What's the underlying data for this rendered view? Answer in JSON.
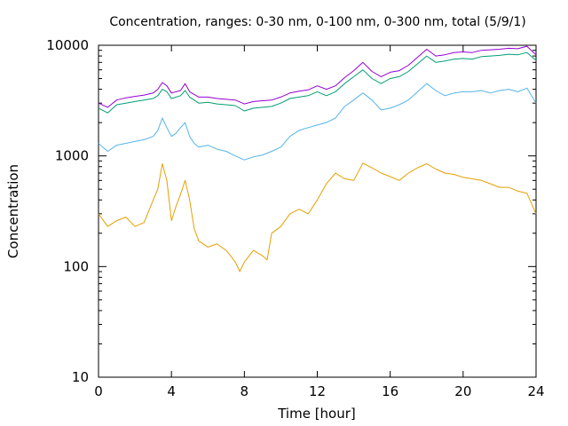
{
  "chart_data": {
    "type": "line",
    "title": "Concentration, ranges: 0-30 nm, 0-100 nm, 0-300 nm, total (5/9/1)",
    "xlabel": "Time [hour]",
    "ylabel": "Concentration",
    "xlim": [
      0,
      24
    ],
    "ylim": [
      10,
      10000
    ],
    "yscale": "log",
    "grid": false,
    "legend": "none",
    "x_ticks": [
      "0",
      "4",
      "8",
      "12",
      "16",
      "20",
      "24"
    ],
    "y_ticks": [
      "10",
      "100",
      "1000",
      "10000"
    ],
    "series": [
      {
        "color": "#e69f00",
        "x": [
          0,
          0.5,
          1,
          1.5,
          2,
          2.5,
          3,
          3.25,
          3.5,
          3.75,
          4,
          4.25,
          4.5,
          4.75,
          5,
          5.25,
          5.5,
          6,
          6.5,
          7,
          7.25,
          7.5,
          7.75,
          8,
          8.5,
          9,
          9.25,
          9.5,
          10,
          10.5,
          11,
          11.5,
          12,
          12.5,
          13,
          13.5,
          14,
          14.5,
          15,
          15.5,
          16,
          16.5,
          17,
          17.5,
          18,
          18.5,
          19,
          19.5,
          20,
          20.5,
          21,
          21.5,
          22,
          22.5,
          23,
          23.5,
          24
        ],
        "values": [
          300,
          230,
          260,
          280,
          230,
          250,
          400,
          500,
          850,
          600,
          260,
          350,
          450,
          600,
          400,
          220,
          170,
          150,
          160,
          140,
          125,
          110,
          90,
          110,
          140,
          125,
          115,
          200,
          230,
          300,
          330,
          300,
          400,
          560,
          700,
          620,
          600,
          860,
          780,
          700,
          650,
          600,
          700,
          780,
          850,
          760,
          700,
          680,
          640,
          620,
          600,
          560,
          520,
          520,
          480,
          460,
          300
        ]
      },
      {
        "color": "#56b4e9",
        "x": [
          0,
          0.5,
          1,
          1.5,
          2,
          2.5,
          3,
          3.25,
          3.5,
          3.75,
          4,
          4.25,
          4.5,
          4.75,
          5,
          5.25,
          5.5,
          6,
          6.5,
          7,
          7.5,
          8,
          8.5,
          9,
          9.5,
          10,
          10.5,
          11,
          11.5,
          12,
          12.5,
          13,
          13.5,
          14,
          14.5,
          15,
          15.5,
          16,
          16.5,
          17,
          17.5,
          18,
          18.5,
          19,
          19.5,
          20,
          20.5,
          21,
          21.5,
          22,
          22.5,
          23,
          23.5,
          24
        ],
        "values": [
          1300,
          1100,
          1250,
          1300,
          1350,
          1400,
          1500,
          1700,
          2200,
          1800,
          1500,
          1600,
          1800,
          2000,
          1500,
          1300,
          1200,
          1250,
          1150,
          1100,
          1000,
          920,
          980,
          1020,
          1100,
          1200,
          1500,
          1700,
          1800,
          1900,
          2000,
          2200,
          2800,
          3200,
          3700,
          3200,
          2600,
          2700,
          2900,
          3200,
          3800,
          4500,
          3900,
          3500,
          3700,
          3800,
          3800,
          3900,
          3700,
          3900,
          4000,
          3800,
          4100,
          3000
        ]
      },
      {
        "color": "#009e73",
        "x": [
          0,
          0.5,
          1,
          1.5,
          2,
          2.5,
          3,
          3.25,
          3.5,
          3.75,
          4,
          4.5,
          4.75,
          5,
          5.5,
          6,
          6.5,
          7,
          7.5,
          8,
          8.5,
          9,
          9.5,
          10,
          10.5,
          11,
          11.5,
          12,
          12.5,
          13,
          13.5,
          14,
          14.5,
          15,
          15.5,
          16,
          16.5,
          17,
          17.5,
          18,
          18.5,
          19,
          19.5,
          20,
          20.5,
          21,
          21.5,
          22,
          22.5,
          23,
          23.5,
          24
        ],
        "values": [
          2700,
          2450,
          2900,
          3000,
          3100,
          3200,
          3300,
          3500,
          4000,
          3800,
          3300,
          3500,
          3900,
          3400,
          3000,
          3050,
          2950,
          2900,
          2850,
          2550,
          2700,
          2750,
          2800,
          3000,
          3300,
          3400,
          3500,
          3800,
          3500,
          3800,
          4500,
          5200,
          6000,
          5000,
          4500,
          5000,
          5200,
          5800,
          6800,
          8000,
          7000,
          7200,
          7500,
          7600,
          7500,
          7900,
          8000,
          8100,
          8300,
          8200,
          8600,
          7300
        ]
      },
      {
        "color": "#9400d3",
        "x": [
          0,
          0.5,
          1,
          1.5,
          2,
          2.5,
          3,
          3.25,
          3.5,
          3.75,
          4,
          4.5,
          4.75,
          5,
          5.5,
          6,
          6.5,
          7,
          7.5,
          8,
          8.5,
          9,
          9.5,
          10,
          10.5,
          11,
          11.5,
          12,
          12.5,
          13,
          13.5,
          14,
          14.5,
          15,
          15.5,
          16,
          16.5,
          17,
          17.5,
          18,
          18.5,
          19,
          19.5,
          20,
          20.5,
          21,
          21.5,
          22,
          22.5,
          23,
          23.5,
          24
        ],
        "values": [
          3000,
          2750,
          3200,
          3350,
          3450,
          3550,
          3700,
          4000,
          4600,
          4300,
          3700,
          3900,
          4500,
          3800,
          3400,
          3400,
          3300,
          3250,
          3200,
          2950,
          3100,
          3150,
          3200,
          3400,
          3700,
          3850,
          3950,
          4300,
          4000,
          4300,
          5100,
          5900,
          7000,
          5800,
          5200,
          5700,
          5900,
          6600,
          7800,
          9200,
          8000,
          8200,
          8600,
          8700,
          8600,
          9000,
          9100,
          9200,
          9400,
          9300,
          9800,
          8200
        ]
      }
    ]
  }
}
